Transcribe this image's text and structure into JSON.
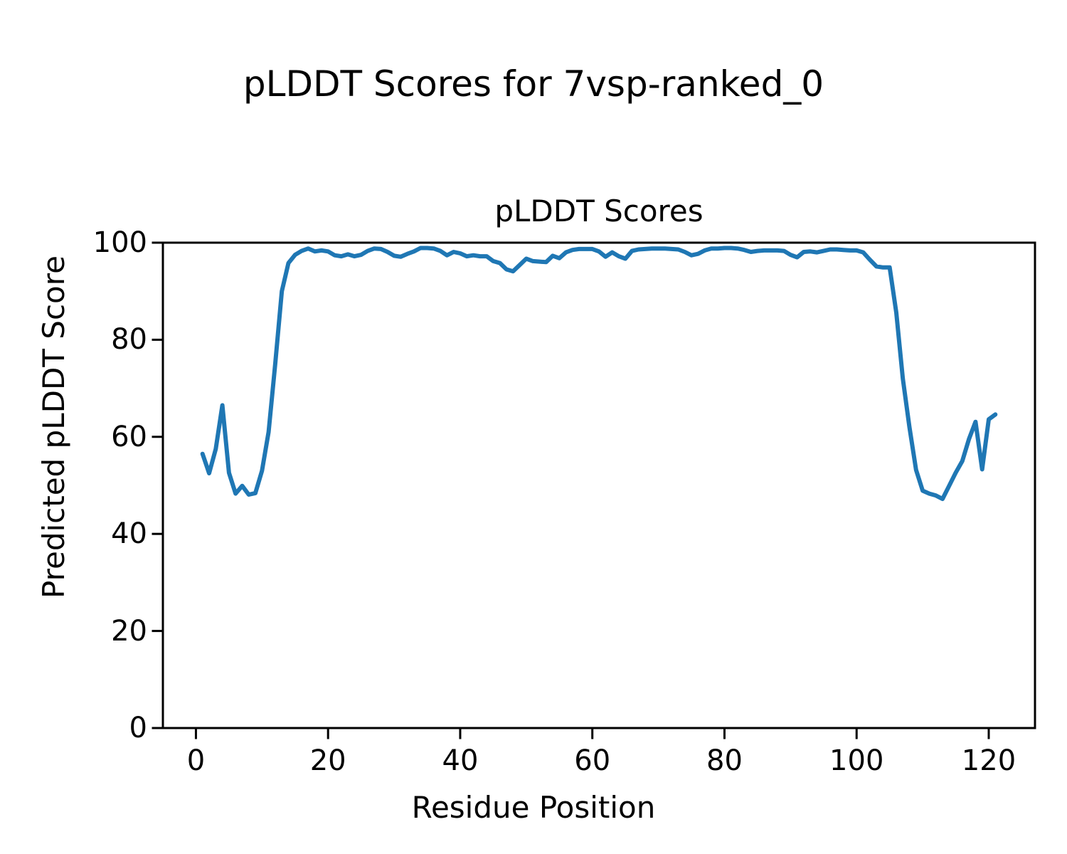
{
  "figure": {
    "suptitle": "pLDDT Scores for 7vsp-ranked_0"
  },
  "chart_data": {
    "type": "line",
    "title": "pLDDT Scores",
    "xlabel": "Residue Position",
    "ylabel": "Predicted pLDDT Score",
    "xlim": [
      -5,
      127
    ],
    "ylim": [
      0,
      100
    ],
    "xticks": [
      0,
      20,
      40,
      60,
      80,
      100,
      120
    ],
    "yticks": [
      0,
      20,
      40,
      60,
      80,
      100
    ],
    "grid": false,
    "legend": "none",
    "line_color": "#1f77b4",
    "series": [
      {
        "name": "pLDDT",
        "x": [
          1,
          2,
          3,
          4,
          5,
          6,
          7,
          8,
          9,
          10,
          11,
          12,
          13,
          14,
          15,
          16,
          17,
          18,
          19,
          20,
          21,
          22,
          23,
          24,
          25,
          26,
          27,
          28,
          29,
          30,
          31,
          32,
          33,
          34,
          35,
          36,
          37,
          38,
          39,
          40,
          41,
          42,
          43,
          44,
          45,
          46,
          47,
          48,
          49,
          50,
          51,
          52,
          53,
          54,
          55,
          56,
          57,
          58,
          59,
          60,
          61,
          62,
          63,
          64,
          65,
          66,
          67,
          68,
          69,
          70,
          71,
          72,
          73,
          74,
          75,
          76,
          77,
          78,
          79,
          80,
          81,
          82,
          83,
          84,
          85,
          86,
          87,
          88,
          89,
          90,
          91,
          92,
          93,
          94,
          95,
          96,
          97,
          98,
          99,
          100,
          101,
          102,
          103,
          104,
          105,
          106,
          107,
          108,
          109,
          110,
          111,
          112,
          113,
          114,
          115,
          116,
          117,
          118,
          119,
          120,
          121
        ],
        "values": [
          56.5,
          52.5,
          57.5,
          66.5,
          52.6,
          48.3,
          49.9,
          48.1,
          48.4,
          53.0,
          61.0,
          75.0,
          90.0,
          95.8,
          97.5,
          98.3,
          98.8,
          98.2,
          98.4,
          98.2,
          97.4,
          97.2,
          97.6,
          97.2,
          97.5,
          98.3,
          98.8,
          98.7,
          98.1,
          97.3,
          97.1,
          97.7,
          98.2,
          98.9,
          98.9,
          98.8,
          98.3,
          97.4,
          98.1,
          97.8,
          97.2,
          97.4,
          97.2,
          97.2,
          96.2,
          95.8,
          94.5,
          94.1,
          95.4,
          96.7,
          96.2,
          96.1,
          96.0,
          97.3,
          96.8,
          98.0,
          98.5,
          98.7,
          98.7,
          98.7,
          98.2,
          97.1,
          98.0,
          97.2,
          96.7,
          98.3,
          98.6,
          98.7,
          98.8,
          98.8,
          98.8,
          98.7,
          98.6,
          98.1,
          97.4,
          97.7,
          98.4,
          98.8,
          98.8,
          98.9,
          98.9,
          98.8,
          98.5,
          98.1,
          98.3,
          98.4,
          98.4,
          98.4,
          98.3,
          97.5,
          97.0,
          98.1,
          98.2,
          98.0,
          98.3,
          98.6,
          98.6,
          98.5,
          98.4,
          98.4,
          98.0,
          96.5,
          95.1,
          94.9,
          94.9,
          85.6,
          72.0,
          62.0,
          53.2,
          48.9,
          48.3,
          47.9,
          47.2,
          49.9,
          52.6,
          55.0,
          59.5,
          63.1,
          53.3,
          63.6,
          64.6
        ]
      }
    ]
  }
}
